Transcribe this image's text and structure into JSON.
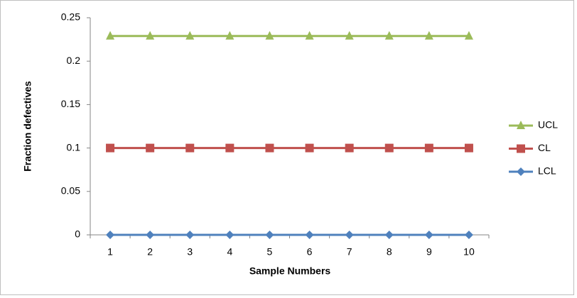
{
  "chart_data": {
    "type": "line",
    "x_label": "Sample Numbers",
    "y_label": "Fraction defectives",
    "categories": [
      "1",
      "2",
      "3",
      "4",
      "5",
      "6",
      "7",
      "8",
      "9",
      "10"
    ],
    "series": [
      {
        "name": "UCL",
        "color": "#9bbb59",
        "marker": "triangle",
        "values": [
          0.229,
          0.229,
          0.229,
          0.229,
          0.229,
          0.229,
          0.229,
          0.229,
          0.229,
          0.229
        ]
      },
      {
        "name": "CL",
        "color": "#c0504d",
        "marker": "square",
        "values": [
          0.1,
          0.1,
          0.1,
          0.1,
          0.1,
          0.1,
          0.1,
          0.1,
          0.1,
          0.1
        ]
      },
      {
        "name": "LCL",
        "color": "#4f81bd",
        "marker": "diamond",
        "values": [
          0,
          0,
          0,
          0,
          0,
          0,
          0,
          0,
          0,
          0
        ]
      }
    ],
    "ylim": [
      0,
      0.25
    ],
    "yticks": [
      0,
      0.05,
      0.1,
      0.15,
      0.2,
      0.25
    ],
    "grid": false,
    "legend": "right"
  }
}
